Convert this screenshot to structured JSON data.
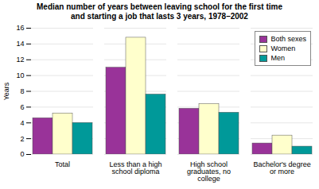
{
  "chart_data": {
    "type": "bar",
    "title": "Median number of years between leaving school for the first time\nand starting a job that lasts 3 years, 1978–2002",
    "categories": [
      "Total",
      "Less than a high\nschool diploma",
      "High school\ngraduates, no\ncollege",
      "Bachelor's degree\nor more"
    ],
    "series": [
      {
        "name": "Both sexes",
        "color": "#993399",
        "values": [
          4.6,
          11.0,
          5.8,
          1.4
        ]
      },
      {
        "name": "Women",
        "color": "#FFFFCC",
        "values": [
          5.2,
          14.8,
          6.4,
          2.4
        ]
      },
      {
        "name": "Men",
        "color": "#009999",
        "values": [
          4.0,
          7.6,
          5.3,
          1.0
        ]
      }
    ],
    "ylabel": "Years",
    "ylim": [
      0,
      16
    ],
    "yticks": [
      0,
      2,
      4,
      6,
      8,
      10,
      12,
      14,
      16
    ],
    "grid": true,
    "legend": "upper right"
  }
}
